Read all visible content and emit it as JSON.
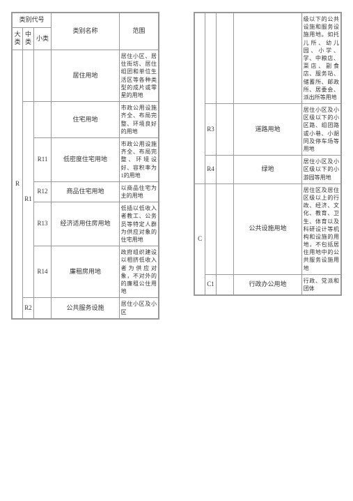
{
  "headers": {
    "category_code": "类别代号",
    "da": "大类",
    "zhong": "中类",
    "xiao": "小类",
    "name": "类别名称",
    "scope": "范围"
  },
  "left_rows": [
    {
      "da": "R",
      "zhong": "",
      "xiao": "",
      "name": "居住用地",
      "scope": "居住小区、居住街坊、居住组团和单位生活区等各种类型的成片或零星的用地",
      "da_rowspan": 7,
      "show_da": true
    },
    {
      "zhong": "R1",
      "xiao": "",
      "name": "住宅用地",
      "scope": "市政公用设施齐全、布局完整、环境良好的用地",
      "zhong_rowspan": 5,
      "show_zhong": false
    },
    {
      "zhong": "R1",
      "xiao": "R11",
      "name": "低密度住宅用地",
      "scope": "市政公用设施齐全、布局完整、环境设好、容积率为1的用地",
      "show_zhong": true
    },
    {
      "xiao": "R12",
      "name": "商品住宅用地",
      "scope": "以商品住宅为主的用地"
    },
    {
      "xiao": "R13",
      "name": "经济适用住房用地",
      "scope": "低插以低收入者教工、公务员等特定人群为供应对象的住宅用地"
    },
    {
      "xiao": "R14",
      "name": "廉租房用地",
      "scope": "政府组织建设以相挤低收入者为供应对象，不对外的的廉租公住用地"
    },
    {
      "zhong": "R2",
      "xiao": "",
      "name": "公共服务设施",
      "scope": "居住小区及小区"
    }
  ],
  "right_rows": [
    {
      "scope_only": "级以下的公共设施和服务设施用地。如托儿所、幼儿园、小学、学、中粮店、菜店、副食店、服务站、储蓄所、邮政所、居委会、派出所等用地"
    },
    {
      "zhong": "R3",
      "name": "道路用地",
      "scope": "居住小区及小区级以下的小区路、组团路或小巷、小胡同及停车场等用地"
    },
    {
      "zhong": "R4",
      "name": "绿地",
      "scope": "居住小区及小区级以下的小游园等用地"
    },
    {
      "da": "C",
      "name": "公共设施用地",
      "scope": "居住区及居住区级以上的行政、经济、文化、教育、卫生、体育以及科研设计等机构和设施的用地，不包括居住用地中的公共服务设施用地"
    },
    {
      "zhong": "C1",
      "name": "行政办公用地",
      "scope": "行政、党派和团体"
    }
  ],
  "styling": {
    "border_color": "#999999",
    "text_color": "#333333",
    "font_size_main": 9,
    "font_size_scope": 8,
    "background": "#ffffff"
  }
}
